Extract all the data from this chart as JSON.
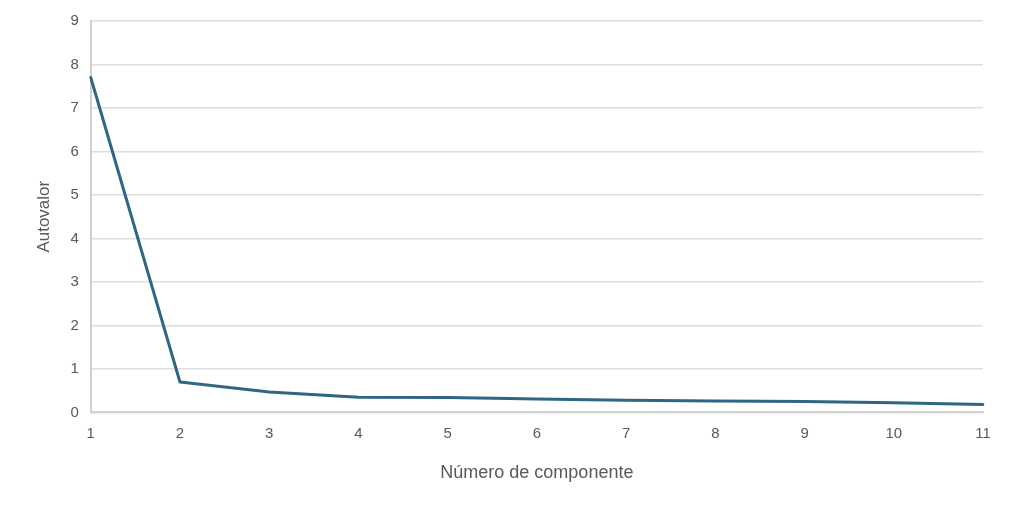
{
  "chart_data": {
    "type": "line",
    "xlabel": "Número de componente",
    "ylabel": "Autovalor",
    "categories": [
      "1",
      "2",
      "3",
      "4",
      "5",
      "6",
      "7",
      "8",
      "9",
      "10",
      "11"
    ],
    "series": [
      {
        "color": "#2f6683",
        "values": [
          7.7,
          0.7,
          0.47,
          0.35,
          0.34,
          0.31,
          0.28,
          0.26,
          0.25,
          0.22,
          0.18
        ]
      }
    ],
    "ylim": [
      0,
      9
    ],
    "yticks": [
      0,
      1,
      2,
      3,
      4,
      5,
      6,
      7,
      8,
      9
    ],
    "grid": "y",
    "legend": false,
    "marker": "none",
    "line_style": "solid"
  }
}
